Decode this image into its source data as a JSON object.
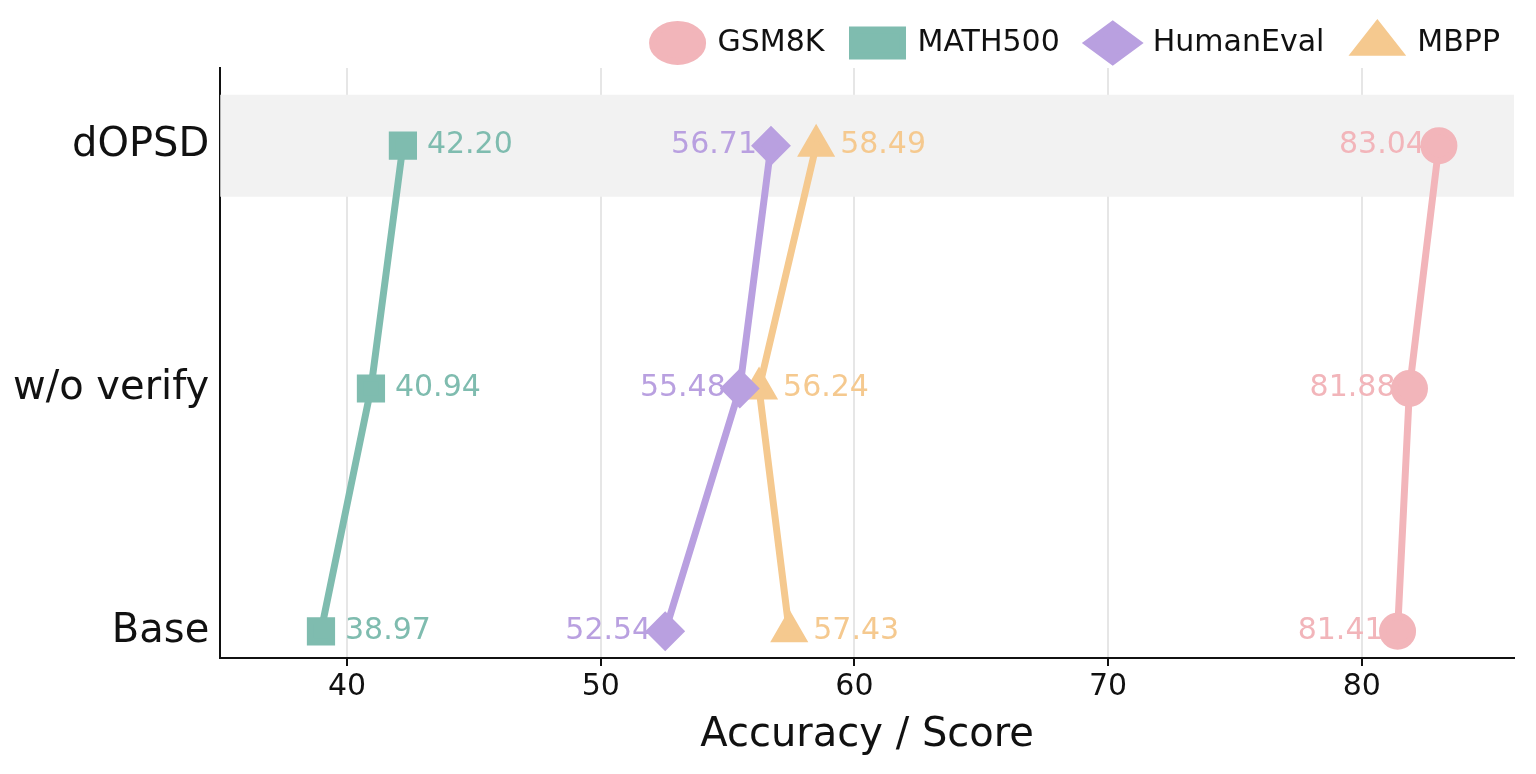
{
  "chart_data": {
    "type": "line",
    "orientation": "horizontal",
    "xlabel": "Accuracy / Score",
    "categories": [
      "dOPSD",
      "w/o verify",
      "Base"
    ],
    "xlim": [
      35,
      86
    ],
    "xticks": [
      40,
      50,
      60,
      70,
      80
    ],
    "grid": "x",
    "legend": "top",
    "line_style": "solid",
    "bands": [
      {
        "axis": "y",
        "from": "dOPSD",
        "to": "dOPSD",
        "color": "#f2f2f2"
      }
    ],
    "series": [
      {
        "name": "GSM8K",
        "color": "#f2b5ba",
        "marker": "circle",
        "values": [
          83.04,
          81.88,
          81.41
        ],
        "value_labels": [
          "83.04",
          "81.88",
          "81.41"
        ]
      },
      {
        "name": "MATH500",
        "color": "#7fbcaf",
        "marker": "square",
        "values": [
          42.2,
          40.94,
          38.97
        ],
        "value_labels": [
          "42.20",
          "40.94",
          "38.97"
        ]
      },
      {
        "name": "HumanEval",
        "color": "#b9a0e0",
        "marker": "diamond",
        "values": [
          56.71,
          55.48,
          52.54
        ],
        "value_labels": [
          "56.71",
          "55.48",
          "52.54"
        ]
      },
      {
        "name": "MBPP",
        "color": "#f5c98f",
        "marker": "triangle",
        "values": [
          58.49,
          56.24,
          57.43
        ],
        "value_labels": [
          "58.49",
          "56.24",
          "57.43"
        ]
      }
    ]
  }
}
